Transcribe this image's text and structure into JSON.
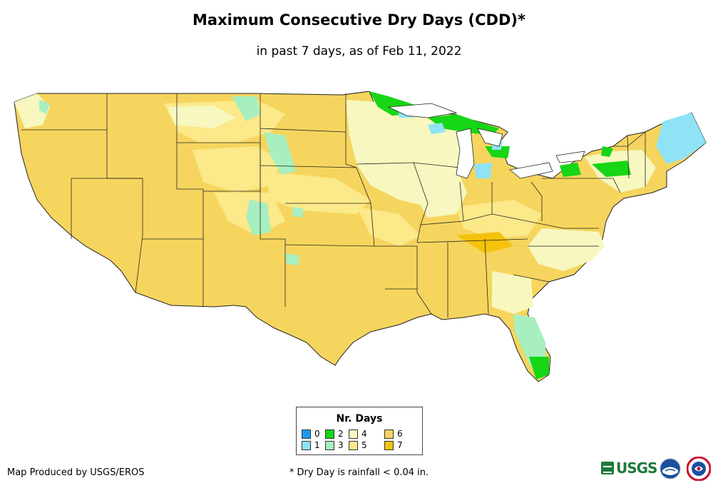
{
  "title": "Maximum Consecutive Dry Days (CDD)*",
  "subtitle": "in past 7 days, as of Feb 11, 2022",
  "legend": {
    "title": "Nr. Days",
    "items": [
      {
        "label": "0",
        "color": "#1a9bf0"
      },
      {
        "label": "1",
        "color": "#8fe3f5"
      },
      {
        "label": "2",
        "color": "#16d616"
      },
      {
        "label": "3",
        "color": "#a8efc0"
      },
      {
        "label": "4",
        "color": "#f7f7bf"
      },
      {
        "label": "5",
        "color": "#fbe98a"
      },
      {
        "label": "6",
        "color": "#f6d55e"
      },
      {
        "label": "7",
        "color": "#f5c20c"
      }
    ]
  },
  "credit": "Map Produced by USGS/EROS",
  "footnote": "* Dry Day is rainfall < 0.04 in.",
  "logos": {
    "usgs": {
      "text": "USGS",
      "icon": "usgs-logo-icon"
    },
    "noaa": {
      "icon": "noaa-logo-icon"
    },
    "nws": {
      "icon": "nws-logo-icon"
    }
  }
}
